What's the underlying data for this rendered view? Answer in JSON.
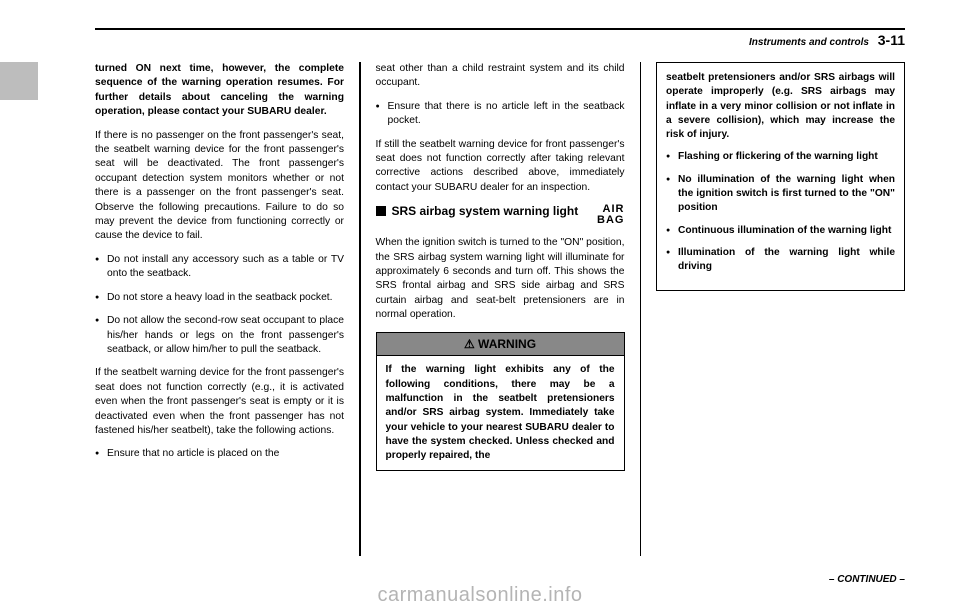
{
  "header": {
    "section": "Instruments and controls",
    "page": "3-11"
  },
  "col1": {
    "p1": "turned ON next time, however, the complete sequence of the warning operation resumes. For further details about canceling the warning operation, please contact your SUBARU dealer.",
    "p2": "If there is no passenger on the front passenger's seat, the seatbelt warning device for the front passenger's seat will be deactivated. The front passenger's occupant detection system monitors whether or not there is a passenger on the front passenger's seat. Observe the following precautions. Failure to do so may prevent the device from functioning correctly or cause the device to fail.",
    "b1": "Do not install any accessory such as a table or TV onto the seatback.",
    "b2": "Do not store a heavy load in the seatback pocket.",
    "b3": "Do not allow the second-row seat occupant to place his/her hands or legs on the front passenger's seatback, or allow him/her to pull the seatback.",
    "p3": "If the seatbelt warning device for the front passenger's seat does not function correctly (e.g., it is activated even when the front passenger's seat is empty or it is deactivated even when the front passenger has not fastened his/her seatbelt), take the following actions.",
    "b4": "Ensure that no article is placed on the"
  },
  "col2": {
    "p1": "seat other than a child restraint system and its child occupant.",
    "b1": "Ensure that there is no article left in the seatback pocket.",
    "p2": "If still the seatbelt warning device for front passenger's seat does not function correctly after taking relevant corrective actions described above, immediately contact your SUBARU dealer for an inspection.",
    "subhead": "SRS airbag system warning light",
    "airbag": "AIR\nBAG",
    "p3": "When the ignition switch is turned to the \"ON\" position, the SRS airbag system warning light will illuminate for approximately 6 seconds and turn off. This shows the SRS frontal airbag and SRS side airbag and SRS curtain airbag and seat-belt pretensioners are in normal operation.",
    "warning_label": "WARNING",
    "warning_body": "If the warning light exhibits any of the following conditions, there may be a malfunction in the seatbelt pretensioners and/or SRS airbag system. Immediately take your vehicle to your nearest SUBARU dealer to have the system checked. Unless checked and properly repaired, the"
  },
  "col3": {
    "p1": "seatbelt pretensioners and/or SRS airbags will operate improperly (e.g. SRS airbags may inflate in a very minor collision or not inflate in a severe collision), which may increase the risk of injury.",
    "b1": "Flashing or flickering of the warning light",
    "b2": "No illumination of the warning light when the ignition switch is first turned to the \"ON\" position",
    "b3": "Continuous illumination of the warning light",
    "b4": "Illumination of the warning light while driving"
  },
  "footer": {
    "continued": "– CONTINUED –",
    "watermark": "carmanualsonline.info"
  }
}
